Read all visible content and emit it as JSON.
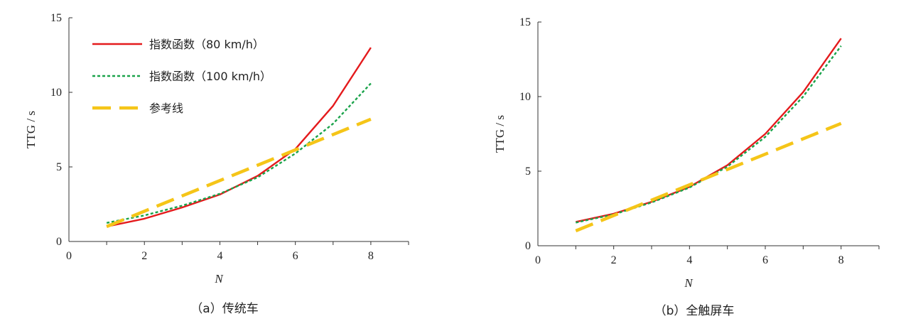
{
  "chart_data": [
    {
      "type": "line",
      "caption": "（a）传统车",
      "xlabel": "N",
      "ylabel": "TTG / s",
      "xlim": [
        0,
        9
      ],
      "ylim": [
        0,
        15
      ],
      "xticks": [
        0,
        2,
        4,
        6,
        8
      ],
      "yticks": [
        0,
        5,
        10,
        15
      ],
      "legend": "top-left",
      "grid": false,
      "series": [
        {
          "name": "指数函数（80 km/h）",
          "color": "#e41a1c",
          "style": "solid",
          "x": [
            1,
            2,
            3,
            4,
            5,
            6,
            7,
            8
          ],
          "y": [
            1.0,
            1.53,
            2.28,
            3.15,
            4.4,
            6.2,
            9.1,
            13.0
          ]
        },
        {
          "name": "指数函数（100 km/h）",
          "color": "#1aa34a",
          "style": "dotted",
          "x": [
            1,
            2,
            3,
            4,
            5,
            6,
            7,
            8
          ],
          "y": [
            1.25,
            1.75,
            2.4,
            3.2,
            4.3,
            5.9,
            7.9,
            10.6
          ]
        },
        {
          "name": "参考线",
          "color": "#f5c518",
          "style": "dashed",
          "x": [
            1,
            8
          ],
          "y": [
            1.0,
            8.2
          ]
        }
      ]
    },
    {
      "type": "line",
      "caption": "（b）全触屏车",
      "xlabel": "N",
      "ylabel": "TTG / s",
      "xlim": [
        0,
        9
      ],
      "ylim": [
        0,
        15
      ],
      "xticks": [
        0,
        2,
        4,
        6,
        8
      ],
      "yticks": [
        0,
        5,
        10,
        15
      ],
      "grid": false,
      "series": [
        {
          "color": "#e41a1c",
          "style": "solid",
          "x": [
            1,
            2,
            3,
            4,
            5,
            6,
            7,
            8
          ],
          "y": [
            1.6,
            2.15,
            2.95,
            3.95,
            5.4,
            7.5,
            10.3,
            13.9
          ]
        },
        {
          "color": "#1aa34a",
          "style": "dotted",
          "x": [
            1,
            2,
            3,
            4,
            5,
            6,
            7,
            8
          ],
          "y": [
            1.55,
            2.1,
            2.9,
            3.9,
            5.3,
            7.3,
            10.0,
            13.4
          ]
        },
        {
          "color": "#f5c518",
          "style": "dashed",
          "x": [
            1,
            8
          ],
          "y": [
            1.0,
            8.2
          ]
        }
      ]
    }
  ]
}
